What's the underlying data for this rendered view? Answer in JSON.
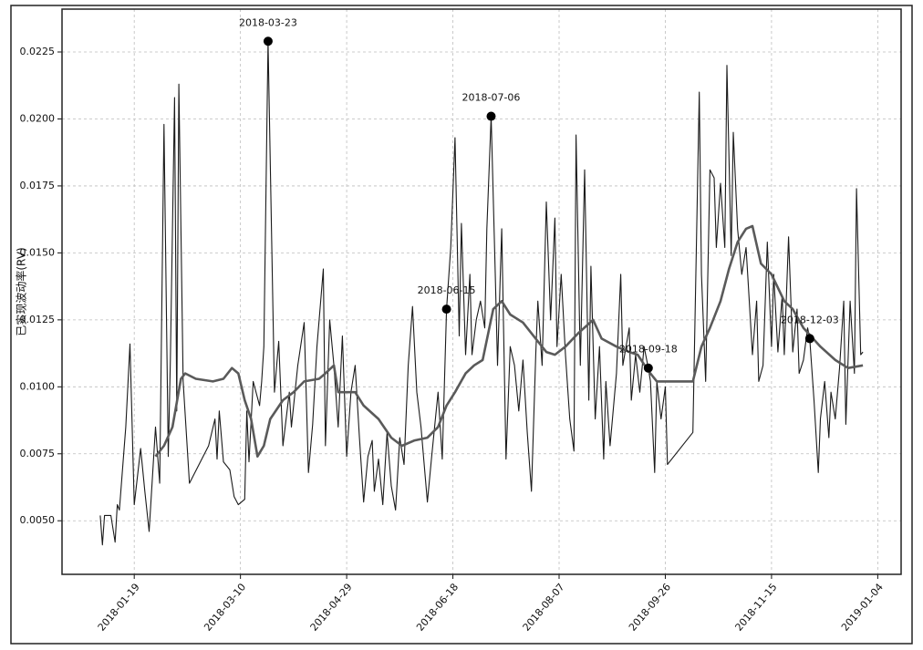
{
  "chart_data": {
    "type": "line",
    "y_label": "已实现波动率(RV)",
    "xlim": [
      "2017-12-16",
      "2019-01-15"
    ],
    "xticks": [
      "2018-01-19",
      "2018-03-10",
      "2018-04-29",
      "2018-06-18",
      "2018-08-07",
      "2018-09-26",
      "2018-11-15",
      "2019-01-04"
    ],
    "ylim": [
      0.003,
      0.0241
    ],
    "yticks": [
      {
        "value": 0.005,
        "label": "0.0050"
      },
      {
        "value": 0.0075,
        "label": "0.0075"
      },
      {
        "value": 0.01,
        "label": "0.0100"
      },
      {
        "value": 0.0125,
        "label": "0.0125"
      },
      {
        "value": 0.015,
        "label": "0.0150"
      },
      {
        "value": 0.0175,
        "label": "0.0175"
      },
      {
        "value": 0.02,
        "label": "0.0200"
      },
      {
        "value": 0.0225,
        "label": "0.0225"
      }
    ],
    "grid": true,
    "series": [
      {
        "color": "#1a1a1a",
        "x": [
          "2018-01-03",
          "2018-01-04",
          "2018-01-05",
          "2018-01-08",
          "2018-01-10",
          "2018-01-11",
          "2018-01-12",
          "2018-01-15",
          "2018-01-17",
          "2018-01-19",
          "2018-01-22",
          "2018-01-24",
          "2018-01-26",
          "2018-01-29",
          "2018-01-31",
          "2018-02-02",
          "2018-02-04",
          "2018-02-05",
          "2018-02-07",
          "2018-02-08",
          "2018-02-09",
          "2018-02-11",
          "2018-02-14",
          "2018-02-23",
          "2018-02-26",
          "2018-02-27",
          "2018-02-28",
          "2018-03-02",
          "2018-03-05",
          "2018-03-07",
          "2018-03-09",
          "2018-03-12",
          "2018-03-13",
          "2018-03-14",
          "2018-03-16",
          "2018-03-19",
          "2018-03-20",
          "2018-03-21",
          "2018-03-23",
          "2018-03-26",
          "2018-03-28",
          "2018-03-30",
          "2018-04-02",
          "2018-04-03",
          "2018-04-06",
          "2018-04-09",
          "2018-04-11",
          "2018-04-13",
          "2018-04-15",
          "2018-04-18",
          "2018-04-19",
          "2018-04-21",
          "2018-04-23",
          "2018-04-25",
          "2018-04-27",
          "2018-04-29",
          "2018-05-01",
          "2018-05-03",
          "2018-05-05",
          "2018-05-07",
          "2018-05-09",
          "2018-05-11",
          "2018-05-12",
          "2018-05-14",
          "2018-05-16",
          "2018-05-18",
          "2018-05-20",
          "2018-05-22",
          "2018-05-24",
          "2018-05-26",
          "2018-05-28",
          "2018-05-30",
          "2018-06-01",
          "2018-06-03",
          "2018-06-06",
          "2018-06-08",
          "2018-06-11",
          "2018-06-13",
          "2018-06-15",
          "2018-06-17",
          "2018-06-19",
          "2018-06-21",
          "2018-06-22",
          "2018-06-24",
          "2018-06-26",
          "2018-06-27",
          "2018-06-29",
          "2018-07-01",
          "2018-07-03",
          "2018-07-04",
          "2018-07-06",
          "2018-07-08",
          "2018-07-09",
          "2018-07-11",
          "2018-07-13",
          "2018-07-15",
          "2018-07-17",
          "2018-07-19",
          "2018-07-21",
          "2018-07-23",
          "2018-07-25",
          "2018-07-27",
          "2018-07-28",
          "2018-07-30",
          "2018-08-01",
          "2018-08-03",
          "2018-08-05",
          "2018-08-06",
          "2018-08-08",
          "2018-08-10",
          "2018-08-12",
          "2018-08-14",
          "2018-08-15",
          "2018-08-17",
          "2018-08-19",
          "2018-08-21",
          "2018-08-22",
          "2018-08-24",
          "2018-08-26",
          "2018-08-28",
          "2018-08-29",
          "2018-08-31",
          "2018-09-03",
          "2018-09-05",
          "2018-09-06",
          "2018-09-09",
          "2018-09-10",
          "2018-09-12",
          "2018-09-14",
          "2018-09-16",
          "2018-09-18",
          "2018-09-19",
          "2018-09-21",
          "2018-09-22",
          "2018-09-24",
          "2018-09-26",
          "2018-09-27",
          "2018-10-09",
          "2018-10-12",
          "2018-10-13",
          "2018-10-15",
          "2018-10-17",
          "2018-10-19",
          "2018-10-20",
          "2018-10-22",
          "2018-10-24",
          "2018-10-25",
          "2018-10-27",
          "2018-10-28",
          "2018-10-30",
          "2018-11-01",
          "2018-11-03",
          "2018-11-04",
          "2018-11-06",
          "2018-11-08",
          "2018-11-09",
          "2018-11-11",
          "2018-11-13",
          "2018-11-15",
          "2018-11-16",
          "2018-11-18",
          "2018-11-20",
          "2018-11-21",
          "2018-11-23",
          "2018-11-25",
          "2018-11-27",
          "2018-11-28",
          "2018-11-30",
          "2018-12-02",
          "2018-12-03",
          "2018-12-05",
          "2018-12-07",
          "2018-12-08",
          "2018-12-10",
          "2018-12-12",
          "2018-12-13",
          "2018-12-15",
          "2018-12-17",
          "2018-12-19",
          "2018-12-20",
          "2018-12-22",
          "2018-12-24",
          "2018-12-25",
          "2018-12-27",
          "2018-12-28"
        ],
        "values": [
          0.0052,
          0.0041,
          0.0052,
          0.0052,
          0.0042,
          0.0056,
          0.0054,
          0.0085,
          0.0116,
          0.0056,
          0.0077,
          0.0061,
          0.0046,
          0.0085,
          0.0064,
          0.0198,
          0.0074,
          0.011,
          0.0208,
          0.0091,
          0.0213,
          0.0102,
          0.0064,
          0.0078,
          0.0088,
          0.0073,
          0.0091,
          0.0072,
          0.0069,
          0.0059,
          0.0056,
          0.0058,
          0.0091,
          0.0072,
          0.0102,
          0.0093,
          0.0102,
          0.0115,
          0.0229,
          0.0098,
          0.0117,
          0.0078,
          0.0098,
          0.0085,
          0.0108,
          0.0124,
          0.0068,
          0.0086,
          0.0115,
          0.0144,
          0.0078,
          0.0125,
          0.0108,
          0.0085,
          0.0119,
          0.0074,
          0.0098,
          0.0108,
          0.0081,
          0.0057,
          0.0074,
          0.008,
          0.0061,
          0.0073,
          0.0056,
          0.0083,
          0.0063,
          0.0054,
          0.0081,
          0.0071,
          0.0108,
          0.013,
          0.0098,
          0.0085,
          0.0057,
          0.0074,
          0.0098,
          0.0073,
          0.0129,
          0.0152,
          0.0193,
          0.0119,
          0.0161,
          0.0112,
          0.0142,
          0.0112,
          0.0125,
          0.0132,
          0.0122,
          0.0159,
          0.0201,
          0.0141,
          0.0108,
          0.0159,
          0.0073,
          0.0115,
          0.0108,
          0.0091,
          0.011,
          0.0083,
          0.0061,
          0.0112,
          0.0132,
          0.0108,
          0.0169,
          0.0125,
          0.0163,
          0.0115,
          0.0142,
          0.0112,
          0.0088,
          0.0076,
          0.0194,
          0.0108,
          0.0181,
          0.0095,
          0.0145,
          0.0088,
          0.0115,
          0.0073,
          0.0102,
          0.0078,
          0.0105,
          0.0142,
          0.0108,
          0.0122,
          0.0095,
          0.0112,
          0.0098,
          0.0115,
          0.0107,
          0.0102,
          0.0068,
          0.0102,
          0.0088,
          0.01,
          0.0071,
          0.0083,
          0.021,
          0.0142,
          0.0102,
          0.0181,
          0.0178,
          0.0152,
          0.0176,
          0.0152,
          0.022,
          0.0149,
          0.0195,
          0.0159,
          0.0142,
          0.0152,
          0.0139,
          0.0112,
          0.0132,
          0.0102,
          0.0108,
          0.0154,
          0.0115,
          0.0142,
          0.0113,
          0.0134,
          0.0112,
          0.0156,
          0.0113,
          0.0129,
          0.0105,
          0.011,
          0.0122,
          0.0118,
          0.0095,
          0.0068,
          0.0088,
          0.0102,
          0.0081,
          0.0098,
          0.0088,
          0.0107,
          0.0132,
          0.0086,
          0.0132,
          0.0105,
          0.0174,
          0.0112,
          0.0113
        ]
      },
      {
        "color": "#5a5a5a",
        "x": [
          "2018-01-29",
          "2018-02-02",
          "2018-02-06",
          "2018-02-10",
          "2018-02-12",
          "2018-02-17",
          "2018-02-25",
          "2018-03-02",
          "2018-03-06",
          "2018-03-09",
          "2018-03-12",
          "2018-03-15",
          "2018-03-18",
          "2018-03-21",
          "2018-03-24",
          "2018-03-30",
          "2018-04-04",
          "2018-04-09",
          "2018-04-16",
          "2018-04-19",
          "2018-04-23",
          "2018-04-25",
          "2018-05-03",
          "2018-05-07",
          "2018-05-14",
          "2018-05-20",
          "2018-05-25",
          "2018-05-31",
          "2018-06-06",
          "2018-06-11",
          "2018-06-15",
          "2018-06-19",
          "2018-06-24",
          "2018-06-28",
          "2018-07-02",
          "2018-07-07",
          "2018-07-11",
          "2018-07-15",
          "2018-07-21",
          "2018-07-28",
          "2018-08-01",
          "2018-08-05",
          "2018-08-10",
          "2018-08-16",
          "2018-08-23",
          "2018-08-27",
          "2018-09-03",
          "2018-09-09",
          "2018-09-13",
          "2018-09-18",
          "2018-09-22",
          "2018-09-27",
          "2018-10-09",
          "2018-10-13",
          "2018-10-17",
          "2018-10-22",
          "2018-10-26",
          "2018-10-30",
          "2018-11-03",
          "2018-11-06",
          "2018-11-10",
          "2018-11-15",
          "2018-11-21",
          "2018-11-25",
          "2018-11-30",
          "2018-12-08",
          "2018-12-15",
          "2018-12-21",
          "2018-12-28"
        ],
        "values": [
          0.0074,
          0.0078,
          0.0085,
          0.0103,
          0.0105,
          0.0103,
          0.0102,
          0.0103,
          0.0107,
          0.0105,
          0.0095,
          0.0088,
          0.0074,
          0.0078,
          0.0088,
          0.0095,
          0.0098,
          0.0102,
          0.0103,
          0.0105,
          0.0108,
          0.0098,
          0.0098,
          0.0093,
          0.0088,
          0.0081,
          0.0078,
          0.008,
          0.0081,
          0.0085,
          0.0093,
          0.0098,
          0.0105,
          0.0108,
          0.011,
          0.0129,
          0.0132,
          0.0127,
          0.0124,
          0.0117,
          0.0113,
          0.0112,
          0.0115,
          0.012,
          0.0125,
          0.0118,
          0.0115,
          0.0113,
          0.0112,
          0.0106,
          0.0102,
          0.0102,
          0.0102,
          0.0115,
          0.0122,
          0.0132,
          0.0144,
          0.0154,
          0.0159,
          0.016,
          0.0146,
          0.0142,
          0.0132,
          0.0129,
          0.0122,
          0.0115,
          0.011,
          0.0107,
          0.0108
        ]
      }
    ],
    "annotations": [
      {
        "x": "2018-03-23",
        "value": 0.0229,
        "label": "2018-03-23"
      },
      {
        "x": "2018-07-06",
        "value": 0.0201,
        "label": "2018-07-06"
      },
      {
        "x": "2018-06-15",
        "value": 0.0129,
        "label": "2018-06-15"
      },
      {
        "x": "2018-09-18",
        "value": 0.0107,
        "label": "2018-09-18"
      },
      {
        "x": "2018-12-03",
        "value": 0.0118,
        "label": "2018-12-03"
      }
    ]
  }
}
